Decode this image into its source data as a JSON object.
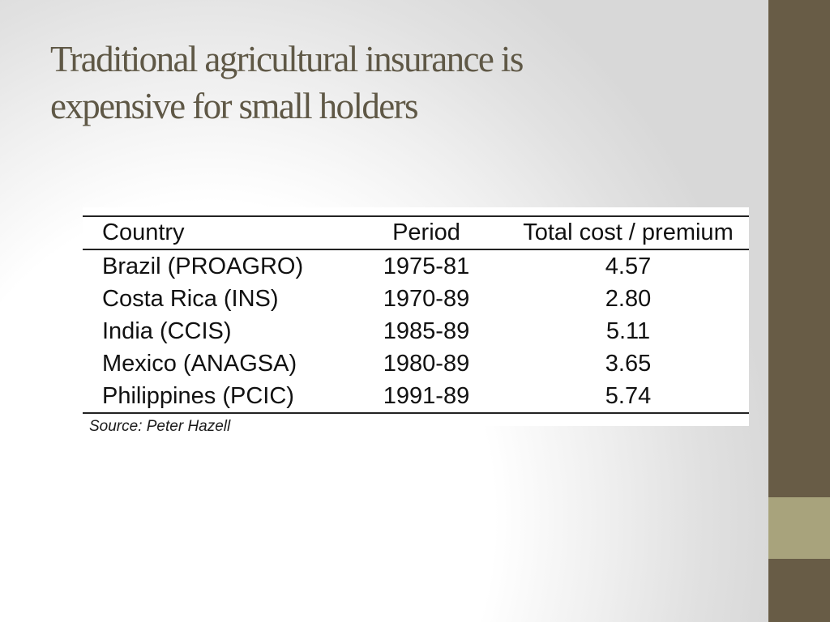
{
  "slide": {
    "title_line1": "Traditional agricultural insurance is",
    "title_line2": "expensive for small holders",
    "source": "Source: Peter Hazell"
  },
  "table": {
    "headers": [
      "Country",
      "Period",
      "Total cost / premium"
    ],
    "rows": [
      [
        "Brazil (PROAGRO)",
        "1975-81",
        "4.57"
      ],
      [
        "Costa Rica (INS)",
        "1970-89",
        "2.80"
      ],
      [
        "India (CCIS)",
        "1985-89",
        "5.11"
      ],
      [
        "Mexico (ANAGSA)",
        "1980-89",
        "3.65"
      ],
      [
        "Philippines (PCIC)",
        "1991-89",
        "5.74"
      ]
    ]
  },
  "colors": {
    "title": "#5f5846",
    "side_bar": "#685c46",
    "side_accent": "#a8a37c"
  }
}
